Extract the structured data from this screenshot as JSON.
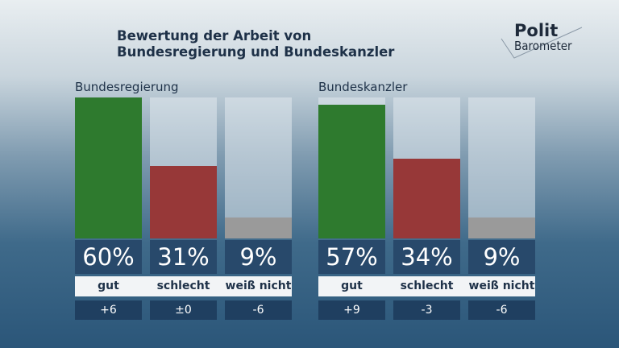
{
  "title_line1": "Bewertung der Arbeit von",
  "title_line2": "Bundesregierung und Bundeskanzler",
  "logo": {
    "line1": "Polit",
    "line2": "Barometer"
  },
  "colors": {
    "gut": "#2e7a2e",
    "schlecht": "#973838",
    "weiss_nicht": "#9a9a9a"
  },
  "chart_data": [
    {
      "type": "bar",
      "title": "Bundesregierung",
      "categories": [
        "gut",
        "schlecht",
        "weiß nicht"
      ],
      "values": [
        60,
        31,
        9
      ],
      "value_labels": [
        "60%",
        "31%",
        "9%"
      ],
      "changes": [
        "+6",
        "±0",
        "-6"
      ],
      "ylim": [
        0,
        60
      ]
    },
    {
      "type": "bar",
      "title": "Bundeskanzler",
      "categories": [
        "gut",
        "schlecht",
        "weiß nicht"
      ],
      "values": [
        57,
        34,
        9
      ],
      "value_labels": [
        "57%",
        "34%",
        "9%"
      ],
      "changes": [
        "+9",
        "-3",
        "-6"
      ],
      "ylim": [
        0,
        60
      ]
    }
  ]
}
